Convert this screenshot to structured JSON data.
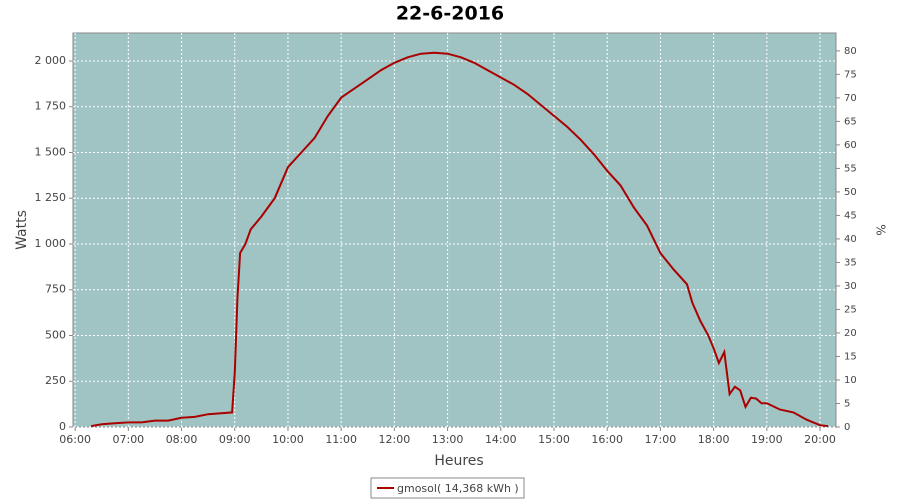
{
  "chart_data": {
    "type": "line",
    "title": "22-6-2016",
    "x_label": "Heures",
    "y_label": "Watts",
    "y2_label": "%",
    "x": [
      6.3,
      6.5,
      6.75,
      7.0,
      7.25,
      7.5,
      7.75,
      8.0,
      8.25,
      8.5,
      8.75,
      8.95,
      9.0,
      9.05,
      9.1,
      9.2,
      9.3,
      9.5,
      9.75,
      10.0,
      10.25,
      10.5,
      10.75,
      11.0,
      11.25,
      11.5,
      11.75,
      12.0,
      12.25,
      12.5,
      12.75,
      13.0,
      13.25,
      13.5,
      13.75,
      14.0,
      14.25,
      14.5,
      14.75,
      15.0,
      15.25,
      15.5,
      15.75,
      16.0,
      16.25,
      16.5,
      16.75,
      17.0,
      17.25,
      17.5,
      17.6,
      17.75,
      17.9,
      18.0,
      18.1,
      18.2,
      18.3,
      18.4,
      18.5,
      18.6,
      18.7,
      18.8,
      18.9,
      19.0,
      19.25,
      19.5,
      19.75,
      20.0,
      20.15
    ],
    "series": [
      {
        "name": "gmosol( 14,368 kWh )",
        "color": "#aa0000",
        "values": [
          5,
          15,
          20,
          25,
          25,
          35,
          35,
          50,
          55,
          70,
          75,
          80,
          300,
          700,
          950,
          1000,
          1080,
          1150,
          1250,
          1420,
          1500,
          1580,
          1700,
          1800,
          1850,
          1900,
          1950,
          1990,
          2020,
          2040,
          2045,
          2040,
          2020,
          1990,
          1950,
          1910,
          1870,
          1820,
          1760,
          1700,
          1640,
          1570,
          1490,
          1400,
          1320,
          1200,
          1100,
          950,
          860,
          780,
          680,
          580,
          500,
          430,
          350,
          410,
          180,
          220,
          200,
          110,
          160,
          155,
          130,
          130,
          95,
          80,
          40,
          10,
          5
        ]
      }
    ],
    "xlim": [
      5.96,
      20.3
    ],
    "xticks": [
      {
        "value": 6,
        "label": "06:00"
      },
      {
        "value": 7,
        "label": "07:00"
      },
      {
        "value": 8,
        "label": "08:00"
      },
      {
        "value": 9,
        "label": "09:00"
      },
      {
        "value": 10,
        "label": "10:00"
      },
      {
        "value": 11,
        "label": "11:00"
      },
      {
        "value": 12,
        "label": "12:00"
      },
      {
        "value": 13,
        "label": "13:00"
      },
      {
        "value": 14,
        "label": "14:00"
      },
      {
        "value": 15,
        "label": "15:00"
      },
      {
        "value": 16,
        "label": "16:00"
      },
      {
        "value": 17,
        "label": "17:00"
      },
      {
        "value": 18,
        "label": "18:00"
      },
      {
        "value": 19,
        "label": "19:00"
      },
      {
        "value": 20,
        "label": "20:00"
      }
    ],
    "ylim": [
      0,
      2153
    ],
    "yticks": [
      0,
      250,
      500,
      750,
      {
        "value": 1000,
        "label": "1 000"
      },
      {
        "value": 1250,
        "label": "1 250"
      },
      {
        "value": 1500,
        "label": "1 500"
      },
      {
        "value": 1750,
        "label": "1 750"
      },
      {
        "value": 2000,
        "label": "2 000"
      }
    ],
    "y2lim": [
      0,
      83.8
    ],
    "y2ticks": [
      0,
      5,
      10,
      15,
      20,
      25,
      30,
      35,
      40,
      45,
      50,
      55,
      60,
      65,
      70,
      75,
      80
    ],
    "grid": true,
    "background": "#a0c4c4",
    "legend": "bottom"
  }
}
